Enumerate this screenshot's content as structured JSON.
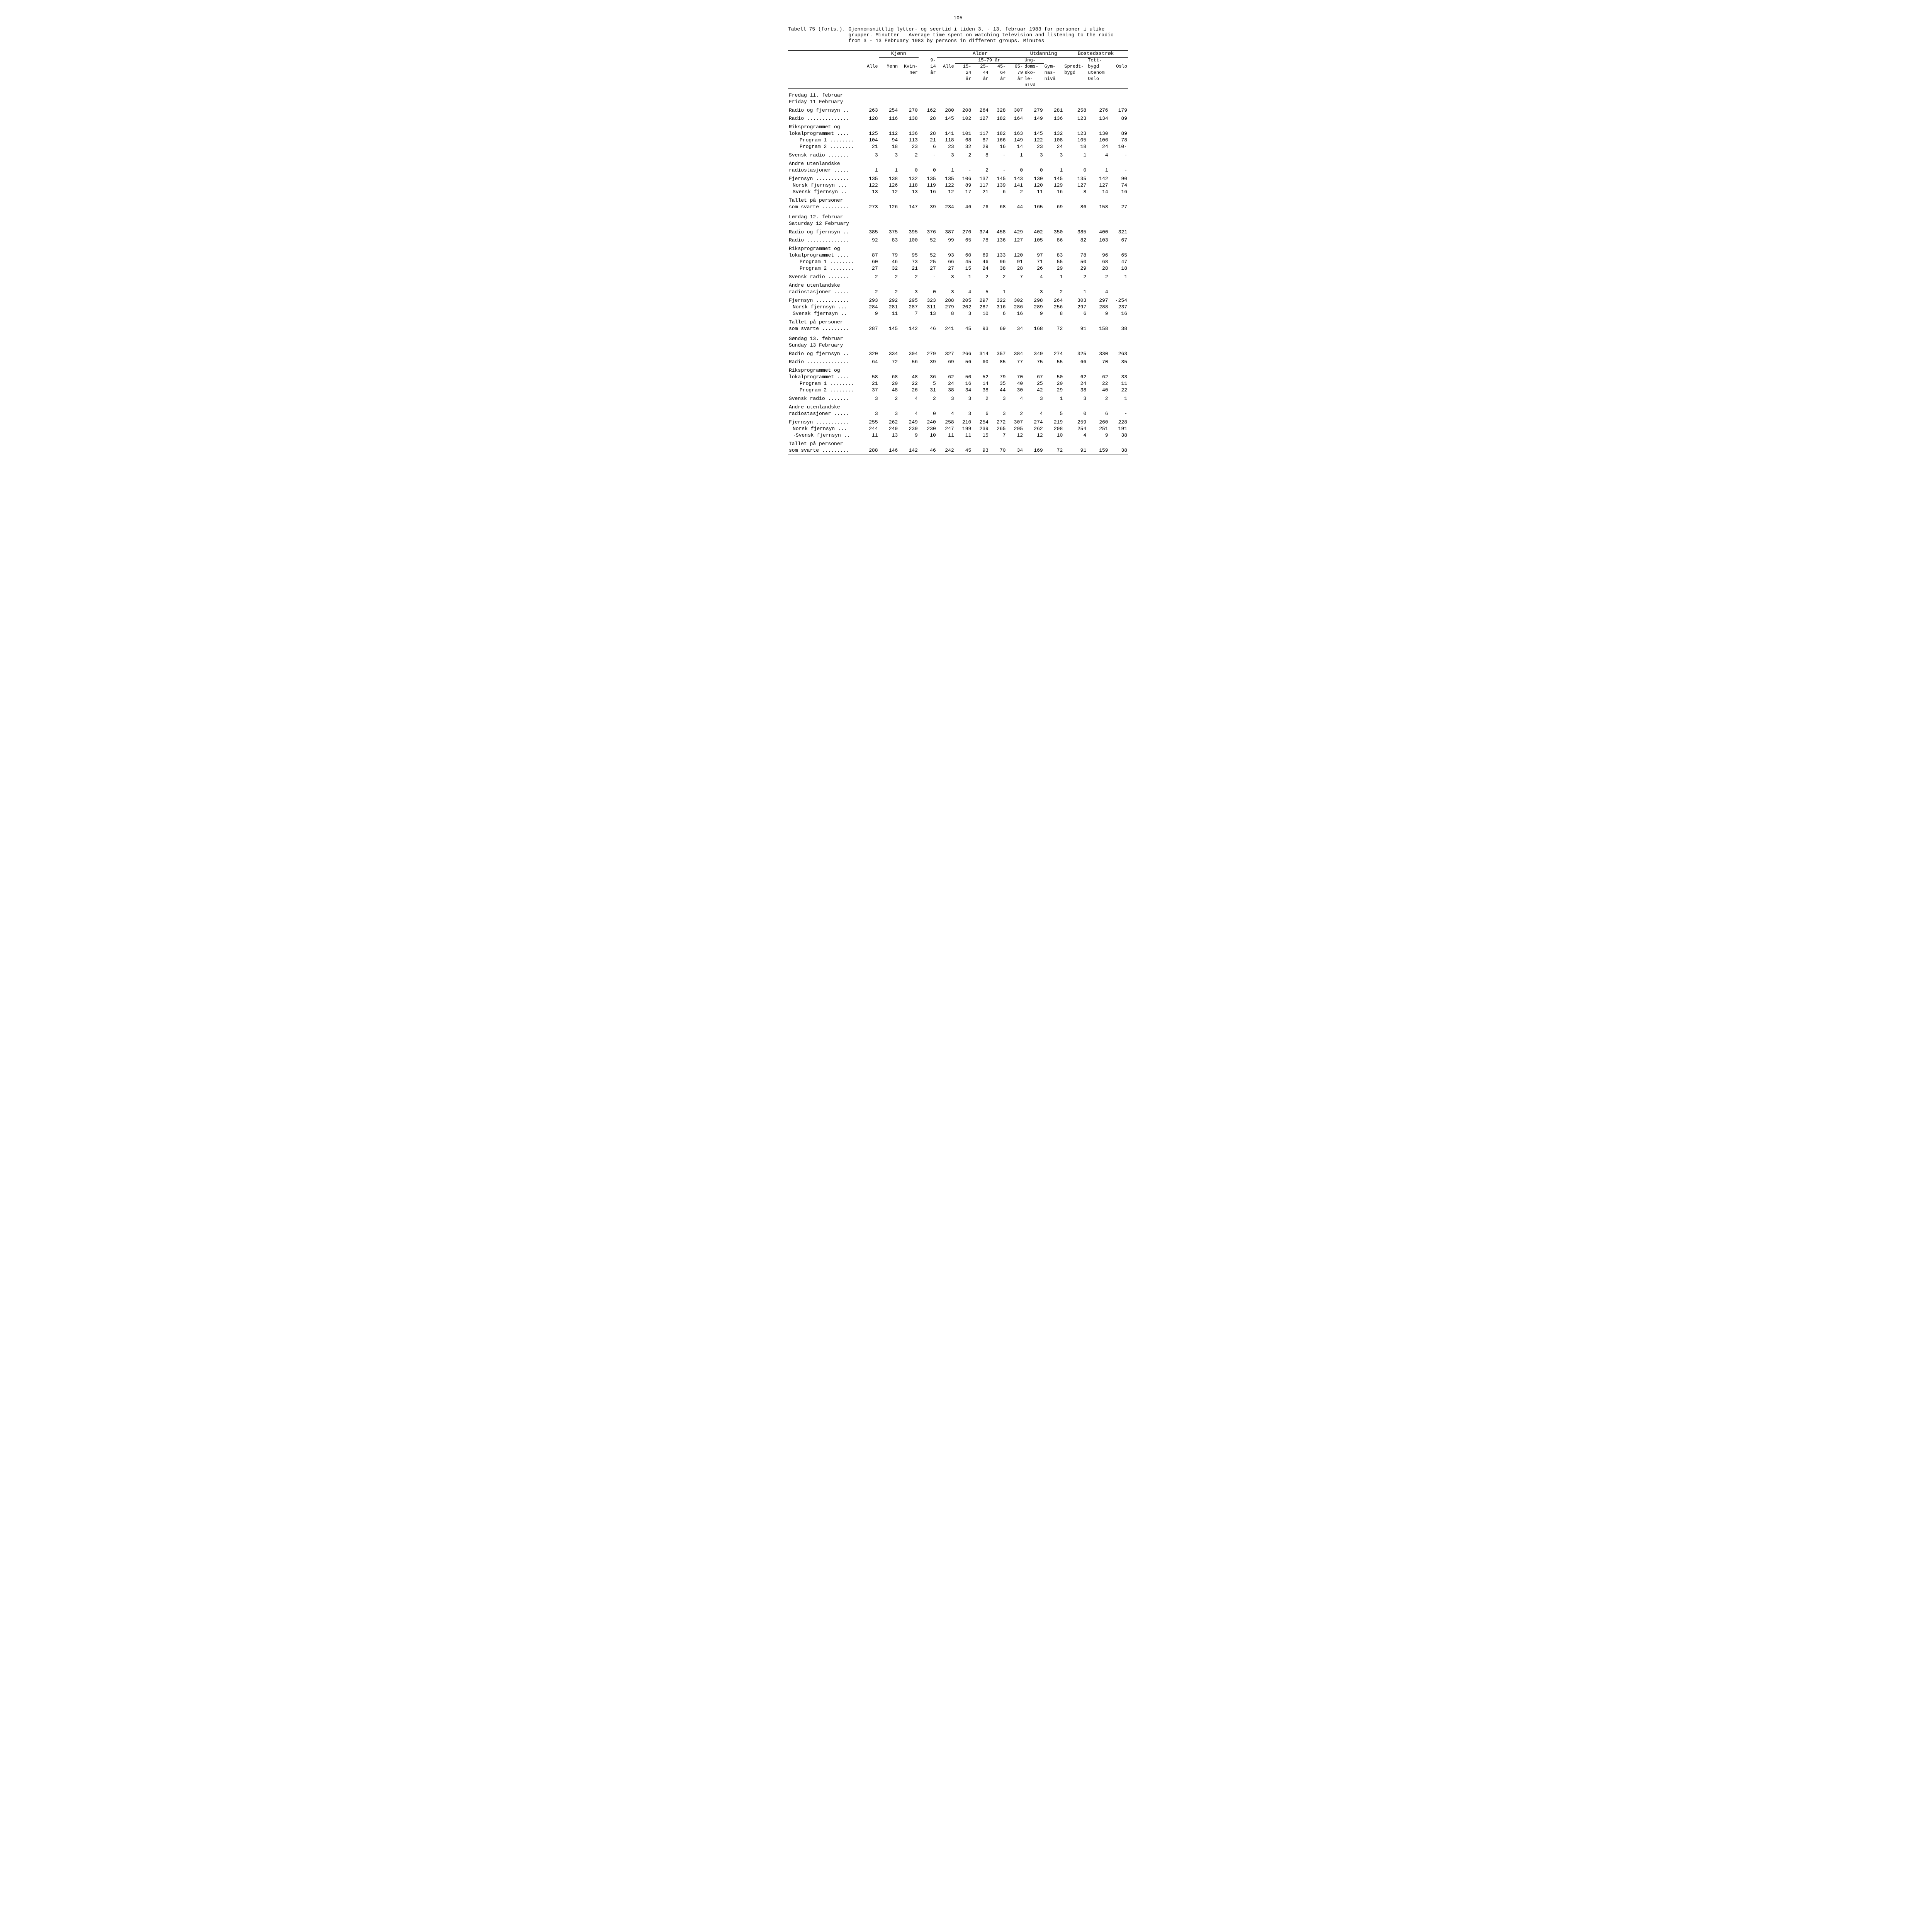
{
  "page_number": "105",
  "caption_lead": "Tabell 75 (forts.).",
  "caption_no": "Gjennomsnittlig lytter- og seertid i tiden 3. - 13. februar 1983 for personer i ulike grupper.  Minutter",
  "caption_en": "Average time spent on watching television and listening to the radio from 3 - 13 February 1983 by persons in different groups.  Minutes",
  "group_headers": {
    "kjonn": "Kjønn",
    "alder": "Alder",
    "utdanning": "Utdanning",
    "bosted": "Bostedsstrøk"
  },
  "col_headers": {
    "alle": "Alle",
    "menn": "Menn",
    "kvinner_a": "Kvin-",
    "kvinner_b": "ner",
    "a9_14_a": "9-",
    "a9_14_b": "14",
    "a9_14_c": "år",
    "alle1579": "Alle",
    "a1579_a": "15-79 år",
    "a15_24_a": "15-",
    "a15_24_b": "24",
    "a15_24_c": "år",
    "a25_44_a": "25-",
    "a25_44_b": "44",
    "a25_44_c": "år",
    "a45_64_a": "45-",
    "a45_64_b": "64",
    "a45_64_c": "år",
    "a65_79_a": "65-",
    "a65_79_b": "79",
    "a65_79_c": "år",
    "ung_a": "Ung-",
    "ung_b": "doms-",
    "ung_c": "sko-",
    "ung_d": "le-",
    "ung_e": "nivå",
    "gym_a": "Gym-",
    "gym_b": "nas-",
    "gym_c": "nivå",
    "spredt_a": "Spredt-",
    "spredt_b": "bygd",
    "tett_a": "Tett-",
    "tett_b": "bygd",
    "tett_c": "utenom",
    "tett_d": "Oslo",
    "oslo": "Oslo"
  },
  "sections": [
    {
      "title_no": "Fredag 11. februar",
      "title_en": "Friday 11 February",
      "rows": [
        {
          "l": "Radio og fjernsyn ..",
          "i": 0,
          "v": [
            "263",
            "254",
            "270",
            "162",
            "280",
            "208",
            "264",
            "328",
            "307",
            "279",
            "281",
            "258",
            "276",
            "179"
          ],
          "g": 1
        },
        {
          "l": "Radio ..............",
          "i": 0,
          "v": [
            "128",
            "116",
            "138",
            "28",
            "145",
            "102",
            "127",
            "182",
            "164",
            "149",
            "136",
            "123",
            "134",
            "89"
          ],
          "g": 1
        },
        {
          "l": "Riksprogrammet og",
          "i": 0,
          "v": [
            "",
            "",
            "",
            "",
            "",
            "",
            "",
            "",
            "",
            "",
            "",
            "",
            "",
            ""
          ],
          "g": 1
        },
        {
          "l": "lokalprogrammet ....",
          "i": 0,
          "v": [
            "125",
            "112",
            "136",
            "28",
            "141",
            "101",
            "117",
            "182",
            "163",
            "145",
            "132",
            "123",
            "130",
            "89"
          ]
        },
        {
          "l": "Program 1 ........",
          "i": 2,
          "v": [
            "104",
            "94",
            "113",
            "21",
            "118",
            "68",
            "87",
            "166",
            "149",
            "122",
            "108",
            "105",
            "106",
            "78"
          ]
        },
        {
          "l": "Program 2 ........",
          "i": 2,
          "v": [
            "21",
            "18",
            "23",
            "6",
            "23",
            "32",
            "29",
            "16",
            "14",
            "23",
            "24",
            "18",
            "24",
            "10·"
          ]
        },
        {
          "l": "Svensk radio .......",
          "i": 0,
          "v": [
            "3",
            "3",
            "2",
            "-",
            "3",
            "2",
            "8",
            "-",
            "1",
            "3",
            "3",
            "1",
            "4",
            "-"
          ],
          "g": 1
        },
        {
          "l": "Andre utenlandske",
          "i": 0,
          "v": [
            "",
            "",
            "",
            "",
            "",
            "",
            "",
            "",
            "",
            "",
            "",
            "",
            "",
            ""
          ],
          "g": 1
        },
        {
          "l": "radiostasjoner .....",
          "i": 0,
          "v": [
            "1",
            "1",
            "0",
            "0",
            "1",
            "-",
            "2",
            "-",
            "0",
            "0",
            "1",
            "0",
            "1",
            "-"
          ]
        },
        {
          "l": "Fjernsyn ...........",
          "i": 0,
          "v": [
            "135",
            "138",
            "132",
            "135",
            "135",
            "106",
            "137",
            "145",
            "143",
            "130",
            "145",
            "135",
            "142",
            "90"
          ],
          "g": 1
        },
        {
          "l": "Norsk fjernsyn ...",
          "i": 1,
          "v": [
            "122",
            "126",
            "118",
            "119",
            "122",
            "89",
            "117",
            "139",
            "141",
            "120",
            "129",
            "127",
            "127",
            "74"
          ]
        },
        {
          "l": "Svensk fjernsyn ..",
          "i": 1,
          "v": [
            "13",
            "12",
            "13",
            "16",
            "12",
            "17",
            "21",
            "6",
            "2",
            "11",
            "16",
            "8",
            "14",
            "16"
          ]
        },
        {
          "l": "Tallet på personer",
          "i": 0,
          "v": [
            "",
            "",
            "",
            "",
            "",
            "",
            "",
            "",
            "",
            "",
            "",
            "",
            "",
            ""
          ],
          "g": 1
        },
        {
          "l": "som svarte .........",
          "i": 0,
          "v": [
            "273",
            "126",
            "147",
            "39",
            "234",
            "46",
            "76",
            "68",
            "44",
            "165",
            "69",
            "86",
            "158",
            "27"
          ]
        }
      ]
    },
    {
      "title_no": "Lørdag 12. februar",
      "title_en": "Saturday 12 February",
      "rows": [
        {
          "l": "Radio og fjernsyn ..",
          "i": 0,
          "v": [
            "385",
            "375",
            "395",
            "376",
            "387",
            "270",
            "374",
            "458",
            "429",
            "402",
            "350",
            "385",
            "400",
            "321"
          ],
          "g": 1
        },
        {
          "l": "Radio ..............",
          "i": 0,
          "v": [
            "92",
            "83",
            "100",
            "52",
            "99",
            "65",
            "78",
            "136",
            "127",
            "105",
            "86",
            "82",
            "103",
            "67"
          ],
          "g": 1
        },
        {
          "l": "Riksprogrammet og",
          "i": 0,
          "v": [
            "",
            "",
            "",
            "",
            "",
            "",
            "",
            "",
            "",
            "",
            "",
            "",
            "",
            ""
          ],
          "g": 1
        },
        {
          "l": "lokalprogrammet ....",
          "i": 0,
          "v": [
            "87",
            "79",
            "95",
            "52",
            "93",
            "60",
            "69",
            "133",
            "120",
            "97",
            "83",
            "78",
            "96",
            "65"
          ]
        },
        {
          "l": "Program 1 ........",
          "i": 2,
          "v": [
            "60",
            "46",
            "73",
            "25",
            "66",
            "45",
            "46",
            "96",
            "91",
            "71",
            "55",
            "50",
            "68",
            "47"
          ]
        },
        {
          "l": "Program 2 ........",
          "i": 2,
          "v": [
            "27",
            "32",
            "21",
            "27",
            "27",
            "15",
            "24",
            "38",
            "28",
            "26",
            "29",
            "29",
            "28",
            "18"
          ]
        },
        {
          "l": "Svensk radio .......",
          "i": 0,
          "v": [
            "2",
            "2",
            "2",
            "-",
            "3",
            "1",
            "2",
            "2",
            "7",
            "4",
            "1",
            "2",
            "2",
            "1"
          ],
          "g": 1
        },
        {
          "l": "Andre utenlandske",
          "i": 0,
          "v": [
            "",
            "",
            "",
            "",
            "",
            "",
            "",
            "",
            "",
            "",
            "",
            "",
            "",
            ""
          ],
          "g": 1
        },
        {
          "l": "radiostasjoner .....",
          "i": 0,
          "v": [
            "2",
            "2",
            "3",
            "0",
            "3",
            "4",
            "5",
            "1",
            "-",
            "3",
            "2",
            "1",
            "4",
            "-"
          ]
        },
        {
          "l": "Fjernsyn ...........",
          "i": 0,
          "v": [
            "293",
            "292",
            "295",
            "323",
            "288",
            "205",
            "297",
            "322",
            "302",
            "298",
            "264",
            "303",
            "297",
            "·254"
          ],
          "g": 1
        },
        {
          "l": "Norsk fjernsyn ...",
          "i": 1,
          "v": [
            "284",
            "281",
            "287",
            "311",
            "279",
            "202",
            "287",
            "316",
            "286",
            "289",
            "256",
            "297",
            "288",
            "237"
          ]
        },
        {
          "l": "Svensk fjernsyn ..",
          "i": 1,
          "v": [
            "9",
            "11",
            "7",
            "13",
            "8",
            "3",
            "10",
            "6",
            "16",
            "9",
            "8",
            "6",
            "9",
            "16"
          ]
        },
        {
          "l": "Tallet på personer",
          "i": 0,
          "v": [
            "",
            "",
            "",
            "",
            "",
            "",
            "",
            "",
            "",
            "",
            "",
            "",
            "",
            ""
          ],
          "g": 1
        },
        {
          "l": "som svarte .........",
          "i": 0,
          "v": [
            "287",
            "145",
            "142",
            "46",
            "241",
            "45",
            "93",
            "69",
            "34",
            "168",
            "72",
            "91",
            "158",
            "38"
          ]
        }
      ]
    },
    {
      "title_no": "Søndag 13. februar",
      "title_en": "Sunday 13 February",
      "rows": [
        {
          "l": "Radio og fjernsyn ..",
          "i": 0,
          "v": [
            "320",
            "334",
            "304",
            "279",
            "327",
            "266",
            "314",
            "357",
            "384",
            "349",
            "274",
            "325",
            "330",
            "263"
          ],
          "g": 1
        },
        {
          "l": "Radio ..............",
          "i": 0,
          "v": [
            "64",
            "72",
            "56",
            "39",
            "69",
            "56",
            "60",
            "85",
            "77",
            "75",
            "55",
            "66",
            "70",
            "35"
          ],
          "g": 1
        },
        {
          "l": "Riksprogrammet og",
          "i": 0,
          "v": [
            "",
            "",
            "",
            "",
            "",
            "",
            "",
            "",
            "",
            "",
            "",
            "",
            "",
            ""
          ],
          "g": 1
        },
        {
          "l": "lokalprogrammet ....",
          "i": 0,
          "v": [
            "58",
            "68",
            "48",
            "36",
            "62",
            "50",
            "52",
            "79",
            "70",
            "67",
            "50",
            "62",
            "62",
            "33"
          ]
        },
        {
          "l": "Program 1 ........",
          "i": 2,
          "v": [
            "21",
            "20",
            "22",
            "5",
            "24",
            "16",
            "14",
            "35",
            "40",
            "25",
            "20",
            "24",
            "22",
            "11"
          ]
        },
        {
          "l": "Program 2 ........",
          "i": 2,
          "v": [
            "37",
            "48",
            "26",
            "31",
            "38",
            "34",
            "38",
            "44",
            "30",
            "42",
            "29",
            "38",
            "40",
            "22"
          ]
        },
        {
          "l": "Svensk radio .......",
          "i": 0,
          "v": [
            "3",
            "2",
            "4",
            "2",
            "3",
            "3",
            "2",
            "3",
            "4",
            "3",
            "1",
            "3",
            "2",
            "1"
          ],
          "g": 1
        },
        {
          "l": "Andre utenlandske",
          "i": 0,
          "v": [
            "",
            "",
            "",
            "",
            "",
            "",
            "",
            "",
            "",
            "",
            "",
            "",
            "",
            ""
          ],
          "g": 1
        },
        {
          "l": "radiostasjoner .....",
          "i": 0,
          "v": [
            "3",
            "3",
            "4",
            "0",
            "4",
            "3",
            "6",
            "3",
            "2",
            "4",
            "5",
            "0",
            "6",
            "-"
          ]
        },
        {
          "l": "Fjernsyn ...........",
          "i": 0,
          "v": [
            "255",
            "262",
            "249",
            "240",
            "258",
            "210",
            "254",
            "272",
            "307",
            "274",
            "219",
            "259",
            "260",
            "228"
          ],
          "g": 1
        },
        {
          "l": "Norsk fjernsyn ...",
          "i": 1,
          "v": [
            "244",
            "249",
            "239",
            "230",
            "247",
            "199",
            "239",
            "265",
            "295",
            "262",
            "208",
            "254",
            "251",
            "191"
          ]
        },
        {
          "l": "·Svensk fjernsyn ..",
          "i": 1,
          "v": [
            "11",
            "13",
            "9",
            "10",
            "11",
            "11",
            "15",
            "7",
            "12",
            "12",
            "10",
            "4",
            "9",
            "38"
          ]
        },
        {
          "l": "Tallet på personer",
          "i": 0,
          "v": [
            "",
            "",
            "",
            "",
            "",
            "",
            "",
            "",
            "",
            "",
            "",
            "",
            "",
            ""
          ],
          "g": 1
        },
        {
          "l": "som svarte .........",
          "i": 0,
          "v": [
            "288",
            "146",
            "142",
            "46",
            "242",
            "45",
            "93",
            "70",
            "34",
            "169",
            "72",
            "91",
            "159",
            "38"
          ]
        }
      ]
    }
  ]
}
